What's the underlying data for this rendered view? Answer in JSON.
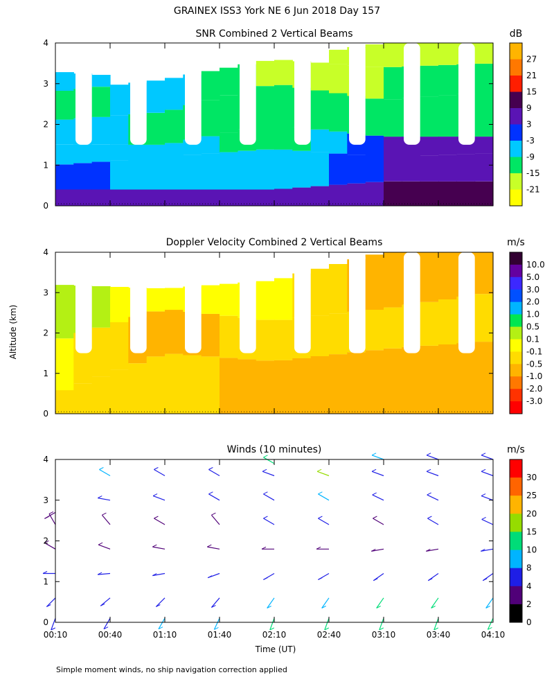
{
  "title": "GRAINEX ISS3 York NE   6 Jun 2018 Day 157",
  "ylabel": "Altitude (km)",
  "xlabel": "Time (UT)",
  "footnote": "Simple moment winds, no ship navigation correction applied",
  "x_ticks": [
    "00:10",
    "00:40",
    "01:10",
    "01:40",
    "02:10",
    "02:40",
    "03:10",
    "03:40",
    "04:10"
  ],
  "chart_data": [
    {
      "type": "heatmap",
      "title": "SNR Combined 2 Vertical Beams",
      "units": "dB",
      "y_ticks": [
        "0",
        "1",
        "2",
        "3",
        "4"
      ],
      "ylim": [
        0,
        4
      ],
      "xlim": [
        "00:10",
        "04:10"
      ],
      "colorbar": {
        "labels": [
          "27",
          "21",
          "15",
          "9",
          "3",
          "-3",
          "-9",
          "-15",
          "-21"
        ],
        "colors": [
          "#ffb400",
          "#ff7800",
          "#ff1e00",
          "#460050",
          "#5a14b4",
          "#0032ff",
          "#00c8ff",
          "#00e664",
          "#c8ff28",
          "#ffff00"
        ]
      },
      "profiles": [
        {
          "t": "00:10",
          "bands": [
            {
              "top": 0.4,
              "v": 9
            },
            {
              "top": 1.0,
              "v": 0
            },
            {
              "top": 1.5,
              "v": -6
            },
            {
              "top": 2.1,
              "v": -3
            },
            {
              "top": 2.8,
              "v": -12
            },
            {
              "top": 3.3,
              "v": -3
            }
          ]
        },
        {
          "t": "01:10",
          "bands": [
            {
              "top": 0.4,
              "v": 6
            },
            {
              "top": 1.2,
              "v": -6
            },
            {
              "top": 1.5,
              "v": -3
            },
            {
              "top": 2.3,
              "v": -12
            },
            {
              "top": 3.1,
              "v": -6
            }
          ]
        },
        {
          "t": "02:10",
          "bands": [
            {
              "top": 0.4,
              "v": 6
            },
            {
              "top": 1.4,
              "v": -8
            },
            {
              "top": 2.0,
              "v": -15
            },
            {
              "top": 3.0,
              "v": -12
            },
            {
              "top": 3.6,
              "v": -18
            }
          ]
        },
        {
          "t": "03:10",
          "bands": [
            {
              "top": 0.6,
              "v": 9
            },
            {
              "top": 1.2,
              "v": 3
            },
            {
              "top": 1.7,
              "v": 3
            },
            {
              "top": 2.6,
              "v": -12
            },
            {
              "top": 3.4,
              "v": -15
            },
            {
              "top": 4.0,
              "v": -18
            }
          ]
        },
        {
          "t": "04:10",
          "bands": [
            {
              "top": 0.6,
              "v": 9
            },
            {
              "top": 1.3,
              "v": 3
            },
            {
              "top": 1.7,
              "v": 3
            },
            {
              "top": 2.8,
              "v": -12
            },
            {
              "top": 3.5,
              "v": -15
            },
            {
              "top": 4.0,
              "v": -18
            }
          ]
        }
      ]
    },
    {
      "type": "heatmap",
      "title": "Doppler Velocity Combined 2 Vertical Beams",
      "units": "m/s",
      "y_ticks": [
        "0",
        "1",
        "2",
        "3",
        "4"
      ],
      "ylim": [
        0,
        4
      ],
      "xlim": [
        "00:10",
        "04:10"
      ],
      "colorbar": {
        "labels": [
          "10.0",
          "5.0",
          "3.0",
          "2.0",
          "1.0",
          "0.5",
          "0.1",
          "-0.1",
          "-0.5",
          "-1.0",
          "-2.0",
          "-3.0"
        ],
        "colors": [
          "#320032",
          "#6400a0",
          "#3c28ff",
          "#0050ff",
          "#00b4ff",
          "#00e650",
          "#b4f014",
          "#ffff00",
          "#ffdc00",
          "#ffb400",
          "#ff7800",
          "#ff3200",
          "#ff0000"
        ]
      },
      "profiles": [
        {
          "t": "00:10",
          "bands": [
            {
              "top": 0.5,
              "v": -0.3
            },
            {
              "top": 1.8,
              "v": 0.0
            },
            {
              "top": 3.2,
              "v": 0.2
            }
          ]
        },
        {
          "t": "01:10",
          "bands": [
            {
              "top": 1.5,
              "v": -0.3
            },
            {
              "top": 2.6,
              "v": -0.7
            },
            {
              "top": 3.1,
              "v": 0.0
            }
          ]
        },
        {
          "t": "02:10",
          "bands": [
            {
              "top": 1.3,
              "v": -0.7
            },
            {
              "top": 2.3,
              "v": -0.3
            },
            {
              "top": 3.3,
              "v": 0.0
            }
          ]
        },
        {
          "t": "03:10",
          "bands": [
            {
              "top": 1.6,
              "v": -0.7
            },
            {
              "top": 2.6,
              "v": -0.3
            },
            {
              "top": 4.0,
              "v": -0.7
            }
          ]
        },
        {
          "t": "04:10",
          "bands": [
            {
              "top": 1.8,
              "v": -0.7
            },
            {
              "top": 3.0,
              "v": -0.3
            },
            {
              "top": 4.0,
              "v": -0.7
            }
          ]
        }
      ]
    },
    {
      "type": "scatter",
      "title": "Winds (10 minutes)",
      "units": "m/s",
      "y_ticks": [
        "0",
        "1",
        "2",
        "3",
        "4"
      ],
      "ylim": [
        0,
        4
      ],
      "xlim": [
        "00:10",
        "04:10"
      ],
      "colorbar": {
        "labels": [
          "30",
          "25",
          "20",
          "15",
          "10",
          "8",
          "4",
          "2",
          "0"
        ],
        "colors": [
          "#ff0000",
          "#ff6400",
          "#ffb400",
          "#96dc00",
          "#00dc78",
          "#00b4ff",
          "#1e1ee6",
          "#500078",
          "#000000"
        ]
      },
      "profiles": [
        {
          "t": "00:10",
          "barbs": [
            {
              "z": 0.1,
              "dir": 200,
              "spd": 7
            },
            {
              "z": 0.6,
              "dir": 225,
              "spd": 6
            },
            {
              "z": 1.2,
              "dir": 270,
              "spd": 4
            },
            {
              "z": 1.8,
              "dir": 300,
              "spd": 3
            },
            {
              "z": 2.4,
              "dir": 330,
              "spd": 2
            },
            {
              "z": 2.7,
              "dir": 240,
              "spd": 3
            }
          ]
        },
        {
          "t": "00:40",
          "barbs": [
            {
              "z": 0.1,
              "dir": 210,
              "spd": 6
            },
            {
              "z": 0.6,
              "dir": 230,
              "spd": 5
            },
            {
              "z": 1.2,
              "dir": 265,
              "spd": 4
            },
            {
              "z": 1.8,
              "dir": 290,
              "spd": 3
            },
            {
              "z": 2.4,
              "dir": 320,
              "spd": 3
            },
            {
              "z": 3.0,
              "dir": 280,
              "spd": 4
            },
            {
              "z": 3.6,
              "dir": 300,
              "spd": 9
            }
          ]
        },
        {
          "t": "01:10",
          "barbs": [
            {
              "z": 0.1,
              "dir": 210,
              "spd": 8
            },
            {
              "z": 0.6,
              "dir": 225,
              "spd": 5
            },
            {
              "z": 1.2,
              "dir": 260,
              "spd": 4
            },
            {
              "z": 1.8,
              "dir": 280,
              "spd": 3
            },
            {
              "z": 2.4,
              "dir": 300,
              "spd": 3
            },
            {
              "z": 3.0,
              "dir": 290,
              "spd": 4
            },
            {
              "z": 3.6,
              "dir": 300,
              "spd": 6
            }
          ]
        },
        {
          "t": "01:40",
          "barbs": [
            {
              "z": 0.1,
              "dir": 205,
              "spd": 9
            },
            {
              "z": 0.6,
              "dir": 220,
              "spd": 6
            },
            {
              "z": 1.2,
              "dir": 250,
              "spd": 4
            },
            {
              "z": 1.8,
              "dir": 280,
              "spd": 3
            },
            {
              "z": 2.4,
              "dir": 320,
              "spd": 3
            },
            {
              "z": 3.0,
              "dir": 300,
              "spd": 4
            },
            {
              "z": 3.6,
              "dir": 300,
              "spd": 5
            }
          ]
        },
        {
          "t": "02:10",
          "barbs": [
            {
              "z": 0.1,
              "dir": 200,
              "spd": 10
            },
            {
              "z": 0.6,
              "dir": 215,
              "spd": 8
            },
            {
              "z": 1.2,
              "dir": 240,
              "spd": 5
            },
            {
              "z": 1.8,
              "dir": 270,
              "spd": 3
            },
            {
              "z": 2.4,
              "dir": 300,
              "spd": 4
            },
            {
              "z": 3.0,
              "dir": 300,
              "spd": 5
            },
            {
              "z": 3.6,
              "dir": 290,
              "spd": 6
            },
            {
              "z": 3.9,
              "dir": 300,
              "spd": 12
            }
          ]
        },
        {
          "t": "02:40",
          "barbs": [
            {
              "z": 0.1,
              "dir": 200,
              "spd": 12
            },
            {
              "z": 0.6,
              "dir": 215,
              "spd": 9
            },
            {
              "z": 1.2,
              "dir": 240,
              "spd": 6
            },
            {
              "z": 1.8,
              "dir": 270,
              "spd": 3
            },
            {
              "z": 2.4,
              "dir": 300,
              "spd": 4
            },
            {
              "z": 3.0,
              "dir": 300,
              "spd": 8
            },
            {
              "z": 3.6,
              "dir": 290,
              "spd": 16
            }
          ]
        },
        {
          "t": "03:10",
          "barbs": [
            {
              "z": 0.1,
              "dir": 200,
              "spd": 13
            },
            {
              "z": 0.6,
              "dir": 215,
              "spd": 10
            },
            {
              "z": 1.2,
              "dir": 235,
              "spd": 6
            },
            {
              "z": 1.8,
              "dir": 260,
              "spd": 3
            },
            {
              "z": 2.4,
              "dir": 300,
              "spd": 3
            },
            {
              "z": 3.0,
              "dir": 295,
              "spd": 5
            },
            {
              "z": 3.6,
              "dir": 290,
              "spd": 5
            },
            {
              "z": 4.0,
              "dir": 290,
              "spd": 8
            }
          ]
        },
        {
          "t": "03:40",
          "barbs": [
            {
              "z": 0.1,
              "dir": 200,
              "spd": 12
            },
            {
              "z": 0.6,
              "dir": 215,
              "spd": 10
            },
            {
              "z": 1.2,
              "dir": 235,
              "spd": 6
            },
            {
              "z": 1.8,
              "dir": 260,
              "spd": 3
            },
            {
              "z": 2.4,
              "dir": 300,
              "spd": 4
            },
            {
              "z": 3.0,
              "dir": 295,
              "spd": 6
            },
            {
              "z": 3.6,
              "dir": 290,
              "spd": 6
            },
            {
              "z": 4.0,
              "dir": 290,
              "spd": 7
            }
          ]
        },
        {
          "t": "04:10",
          "barbs": [
            {
              "z": 0.1,
              "dir": 205,
              "spd": 11
            },
            {
              "z": 0.6,
              "dir": 215,
              "spd": 9
            },
            {
              "z": 1.2,
              "dir": 235,
              "spd": 6
            },
            {
              "z": 1.8,
              "dir": 260,
              "spd": 4
            },
            {
              "z": 2.4,
              "dir": 295,
              "spd": 5
            },
            {
              "z": 3.0,
              "dir": 290,
              "spd": 7
            },
            {
              "z": 3.6,
              "dir": 290,
              "spd": 6
            },
            {
              "z": 4.0,
              "dir": 290,
              "spd": 7
            }
          ]
        }
      ]
    }
  ]
}
